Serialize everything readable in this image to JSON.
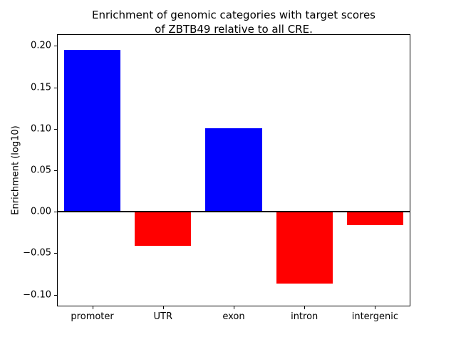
{
  "chart_data": {
    "type": "bar",
    "title": "Enrichment of genomic categories with target scores\nof ZBTB49 relative to all CRE.",
    "xlabel": "",
    "ylabel": "Enrichment (log10)",
    "categories": [
      "promoter",
      "UTR",
      "exon",
      "intron",
      "intergenic"
    ],
    "values": [
      0.195,
      -0.041,
      0.101,
      -0.087,
      -0.016
    ],
    "yticks": [
      -0.1,
      -0.05,
      0.0,
      0.05,
      0.1,
      0.15,
      0.2
    ],
    "ylim": [
      -0.1,
      0.2
    ],
    "grid": false,
    "legend_position": "none",
    "colors": {
      "positive_bar": "#0000ff",
      "negative_bar": "#ff0000",
      "axis": "#000000",
      "background": "#ffffff"
    }
  }
}
